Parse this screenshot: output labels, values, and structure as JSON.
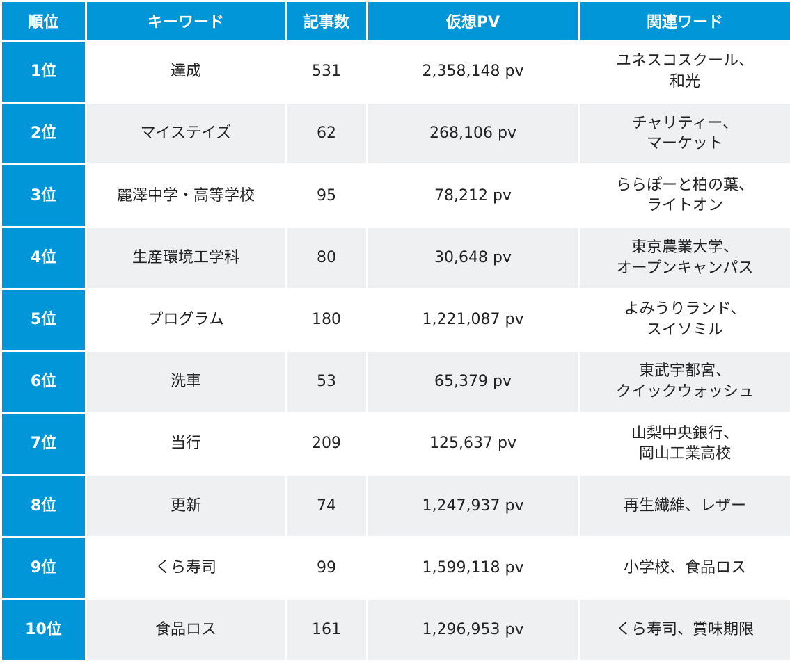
{
  "headers": {
    "rank": "順位",
    "keyword": "キーワード",
    "article_count": "記事数",
    "virtual_pv": "仮想PV",
    "related": "関連ワード"
  },
  "rows": [
    {
      "rank": "1位",
      "keyword": "達成",
      "count": "531",
      "pv": "2,358,148 pv",
      "related": [
        "ユネスコスクール、",
        "和光"
      ]
    },
    {
      "rank": "2位",
      "keyword": "マイステイズ",
      "count": "62",
      "pv": "268,106 pv",
      "related": [
        "チャリティー、",
        "マーケット"
      ]
    },
    {
      "rank": "3位",
      "keyword": "麗澤中学・高等学校",
      "count": "95",
      "pv": "78,212 pv",
      "related": [
        "ららぽーと柏の葉、",
        "ライトオン"
      ]
    },
    {
      "rank": "4位",
      "keyword": "生産環境工学科",
      "count": "80",
      "pv": "30,648 pv",
      "related": [
        "東京農業大学、",
        "オープンキャンパス"
      ]
    },
    {
      "rank": "5位",
      "keyword": "プログラム",
      "count": "180",
      "pv": "1,221,087 pv",
      "related": [
        "よみうりランド、",
        "スイソミル"
      ]
    },
    {
      "rank": "6位",
      "keyword": "洗車",
      "count": "53",
      "pv": "65,379 pv",
      "related": [
        "東武宇都宮、",
        "クイックウォッシュ"
      ]
    },
    {
      "rank": "7位",
      "keyword": "当行",
      "count": "209",
      "pv": "125,637 pv",
      "related": [
        "山梨中央銀行、",
        "岡山工業高校"
      ]
    },
    {
      "rank": "8位",
      "keyword": "更新",
      "count": "74",
      "pv": "1,247,937 pv",
      "related": [
        "再生繊維、レザー"
      ]
    },
    {
      "rank": "9位",
      "keyword": "くら寿司",
      "count": "99",
      "pv": "1,599,118 pv",
      "related": [
        "小学校、食品ロス"
      ]
    },
    {
      "rank": "10位",
      "keyword": "食品ロス",
      "count": "161",
      "pv": "1,296,953 pv",
      "related": [
        "くら寿司、賞味期限"
      ]
    }
  ],
  "colors": {
    "header_bg": "#0096d8",
    "rank_bg": "#0096d8",
    "stripe_bg": "#eef0f2"
  }
}
